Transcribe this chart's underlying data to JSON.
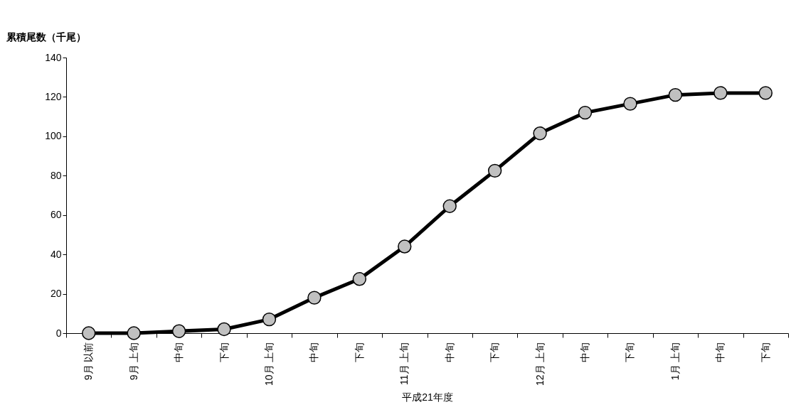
{
  "chart_data": {
    "type": "line",
    "xlabel": "平成21年度",
    "ylabel": "累積尾数（千尾）",
    "categories": [
      "9月 以前",
      "9月 上旬",
      "中旬",
      "下旬",
      "10月 上旬",
      "中旬",
      "下旬",
      "11月 上旬",
      "中旬",
      "下旬",
      "12月 上旬",
      "中旬",
      "下旬",
      "1月 上旬",
      "中旬",
      "下旬"
    ],
    "series": [
      {
        "color": "#000000",
        "values": [
          0,
          0,
          1,
          2,
          7,
          18,
          27.5,
          44,
          64.5,
          82.5,
          101.5,
          112,
          116.5,
          121,
          122,
          122
        ]
      }
    ],
    "ylim": [
      0,
      140
    ],
    "yticks": [
      0,
      20,
      40,
      60,
      80,
      100,
      120,
      140
    ],
    "grid": false,
    "marker": "circle",
    "line_style": "solid"
  }
}
